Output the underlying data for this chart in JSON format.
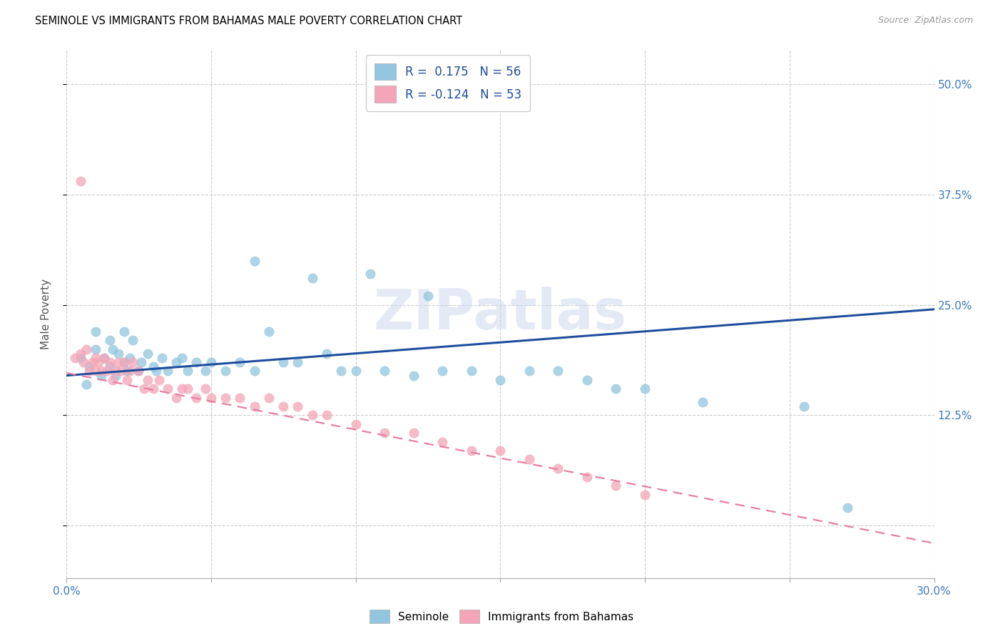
{
  "title": "SEMINOLE VS IMMIGRANTS FROM BAHAMAS MALE POVERTY CORRELATION CHART",
  "source": "Source: ZipAtlas.com",
  "ylabel": "Male Poverty",
  "color_blue": "#92c5de",
  "color_pink": "#f4a5b8",
  "line_blue": "#1f4e9e",
  "line_pink": "#e87ea1",
  "watermark": "ZIPatlas",
  "xmin": 0.0,
  "xmax": 0.3,
  "ymin": -0.06,
  "ymax": 0.54,
  "blue_line_y0": 0.17,
  "blue_line_y1": 0.245,
  "pink_line_y0": 0.173,
  "pink_line_y1": -0.02,
  "seminole_x": [
    0.005,
    0.007,
    0.008,
    0.01,
    0.01,
    0.012,
    0.013,
    0.015,
    0.015,
    0.016,
    0.017,
    0.018,
    0.02,
    0.02,
    0.021,
    0.022,
    0.023,
    0.025,
    0.026,
    0.028,
    0.03,
    0.031,
    0.033,
    0.035,
    0.038,
    0.04,
    0.042,
    0.045,
    0.048,
    0.05,
    0.055,
    0.06,
    0.065,
    0.07,
    0.075,
    0.08,
    0.09,
    0.095,
    0.1,
    0.11,
    0.12,
    0.13,
    0.14,
    0.15,
    0.16,
    0.17,
    0.18,
    0.19,
    0.2,
    0.22,
    0.065,
    0.085,
    0.105,
    0.125,
    0.255,
    0.27
  ],
  "seminole_y": [
    0.19,
    0.16,
    0.18,
    0.2,
    0.22,
    0.17,
    0.19,
    0.21,
    0.18,
    0.2,
    0.17,
    0.195,
    0.185,
    0.22,
    0.175,
    0.19,
    0.21,
    0.175,
    0.185,
    0.195,
    0.18,
    0.175,
    0.19,
    0.175,
    0.185,
    0.19,
    0.175,
    0.185,
    0.175,
    0.185,
    0.175,
    0.185,
    0.175,
    0.22,
    0.185,
    0.185,
    0.195,
    0.175,
    0.175,
    0.175,
    0.17,
    0.175,
    0.175,
    0.165,
    0.175,
    0.175,
    0.165,
    0.155,
    0.155,
    0.14,
    0.3,
    0.28,
    0.285,
    0.26,
    0.135,
    0.02
  ],
  "bahamas_x": [
    0.003,
    0.005,
    0.006,
    0.007,
    0.008,
    0.009,
    0.01,
    0.01,
    0.011,
    0.012,
    0.013,
    0.014,
    0.015,
    0.016,
    0.017,
    0.018,
    0.019,
    0.02,
    0.021,
    0.022,
    0.023,
    0.025,
    0.027,
    0.028,
    0.03,
    0.032,
    0.035,
    0.038,
    0.04,
    0.042,
    0.045,
    0.048,
    0.05,
    0.055,
    0.06,
    0.065,
    0.07,
    0.075,
    0.08,
    0.085,
    0.09,
    0.1,
    0.11,
    0.12,
    0.13,
    0.14,
    0.15,
    0.16,
    0.17,
    0.18,
    0.19,
    0.2,
    0.005
  ],
  "bahamas_y": [
    0.19,
    0.195,
    0.185,
    0.2,
    0.175,
    0.185,
    0.19,
    0.175,
    0.185,
    0.175,
    0.19,
    0.175,
    0.185,
    0.165,
    0.175,
    0.185,
    0.175,
    0.185,
    0.165,
    0.175,
    0.185,
    0.175,
    0.155,
    0.165,
    0.155,
    0.165,
    0.155,
    0.145,
    0.155,
    0.155,
    0.145,
    0.155,
    0.145,
    0.145,
    0.145,
    0.135,
    0.145,
    0.135,
    0.135,
    0.125,
    0.125,
    0.115,
    0.105,
    0.105,
    0.095,
    0.085,
    0.085,
    0.075,
    0.065,
    0.055,
    0.045,
    0.035,
    0.39
  ]
}
